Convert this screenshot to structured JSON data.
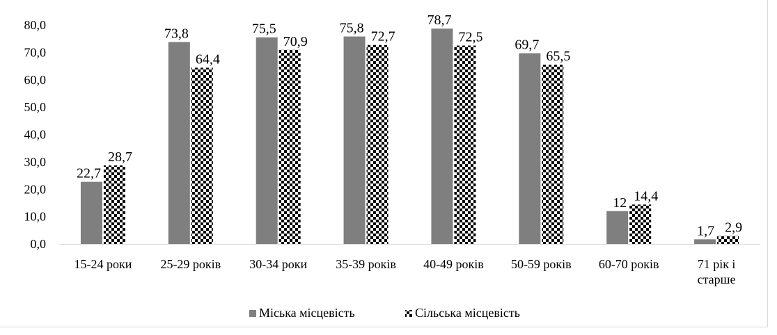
{
  "chart_data": {
    "type": "bar",
    "categories": [
      [
        "15-24 роки"
      ],
      [
        "25-29 років"
      ],
      [
        "30-34 роки"
      ],
      [
        "35-39 років"
      ],
      [
        "40-49 років"
      ],
      [
        "50-59 років"
      ],
      [
        "60-70 років"
      ],
      [
        "71 рік і",
        "старше"
      ]
    ],
    "series": [
      {
        "name": "Міська місцевість",
        "values": [
          22.7,
          73.8,
          75.5,
          75.8,
          78.7,
          69.7,
          12,
          1.7
        ],
        "labels": [
          "22,7",
          "73,8",
          "75,5",
          "75,8",
          "78,7",
          "69,7",
          "12",
          "1,7"
        ],
        "color": "#7f7f7f",
        "pattern": "solid"
      },
      {
        "name": "Сільська місцевість",
        "values": [
          28.7,
          64.4,
          70.9,
          72.7,
          72.5,
          65.5,
          14.4,
          2.9
        ],
        "labels": [
          "28,7",
          "64,4",
          "70,9",
          "72,7",
          "72,5",
          "65,5",
          "14,4",
          "2,9"
        ],
        "color": "#000000",
        "pattern": "checker"
      }
    ],
    "yticks": [
      "0,0",
      "10,0",
      "20,0",
      "30,0",
      "40,0",
      "50,0",
      "60,0",
      "70,0",
      "80,0"
    ],
    "ylim": [
      0,
      80
    ],
    "title": "",
    "xlabel": "",
    "ylabel": "",
    "grid": false,
    "legend_position": "bottom"
  }
}
